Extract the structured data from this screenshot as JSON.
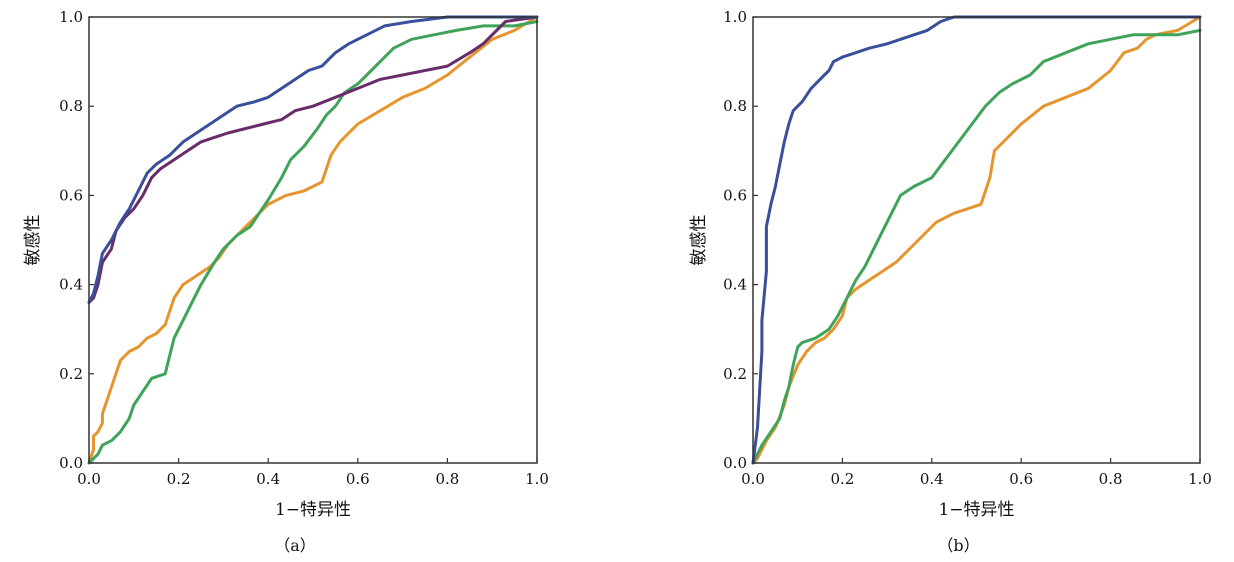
{
  "chart_data": [
    {
      "type": "line",
      "caption": "（a）",
      "xlabel": "1−特异性",
      "ylabel": "敏感性",
      "xlim": [
        0,
        1
      ],
      "ylim": [
        0,
        1
      ],
      "xticks": [
        "0.0",
        "0.2",
        "0.4",
        "0.6",
        "0.8",
        "1.0"
      ],
      "yticks": [
        "0.0",
        "0.2",
        "0.4",
        "0.6",
        "0.8",
        "1.0"
      ],
      "grid": false,
      "series": [
        {
          "color": "#e6952e",
          "points": [
            [
              0,
              0
            ],
            [
              0.01,
              0.03
            ],
            [
              0.01,
              0.06
            ],
            [
              0.02,
              0.07
            ],
            [
              0.03,
              0.09
            ],
            [
              0.03,
              0.11
            ],
            [
              0.04,
              0.14
            ],
            [
              0.05,
              0.17
            ],
            [
              0.06,
              0.2
            ],
            [
              0.07,
              0.23
            ],
            [
              0.09,
              0.25
            ],
            [
              0.11,
              0.26
            ],
            [
              0.13,
              0.28
            ],
            [
              0.15,
              0.29
            ],
            [
              0.17,
              0.31
            ],
            [
              0.19,
              0.37
            ],
            [
              0.21,
              0.4
            ],
            [
              0.24,
              0.42
            ],
            [
              0.27,
              0.44
            ],
            [
              0.29,
              0.46
            ],
            [
              0.31,
              0.49
            ],
            [
              0.34,
              0.52
            ],
            [
              0.37,
              0.55
            ],
            [
              0.4,
              0.58
            ],
            [
              0.44,
              0.6
            ],
            [
              0.48,
              0.61
            ],
            [
              0.52,
              0.63
            ],
            [
              0.54,
              0.69
            ],
            [
              0.56,
              0.72
            ],
            [
              0.6,
              0.76
            ],
            [
              0.65,
              0.79
            ],
            [
              0.7,
              0.82
            ],
            [
              0.75,
              0.84
            ],
            [
              0.8,
              0.87
            ],
            [
              0.85,
              0.91
            ],
            [
              0.9,
              0.95
            ],
            [
              0.95,
              0.97
            ],
            [
              1.0,
              1.0
            ]
          ]
        },
        {
          "color": "#3fa35a",
          "points": [
            [
              0,
              0
            ],
            [
              0.02,
              0.02
            ],
            [
              0.03,
              0.04
            ],
            [
              0.05,
              0.05
            ],
            [
              0.07,
              0.07
            ],
            [
              0.09,
              0.1
            ],
            [
              0.1,
              0.13
            ],
            [
              0.12,
              0.16
            ],
            [
              0.14,
              0.19
            ],
            [
              0.17,
              0.2
            ],
            [
              0.18,
              0.24
            ],
            [
              0.19,
              0.28
            ],
            [
              0.21,
              0.32
            ],
            [
              0.23,
              0.36
            ],
            [
              0.25,
              0.4
            ],
            [
              0.28,
              0.45
            ],
            [
              0.3,
              0.48
            ],
            [
              0.33,
              0.51
            ],
            [
              0.36,
              0.53
            ],
            [
              0.38,
              0.56
            ],
            [
              0.4,
              0.59
            ],
            [
              0.43,
              0.64
            ],
            [
              0.45,
              0.68
            ],
            [
              0.48,
              0.71
            ],
            [
              0.51,
              0.75
            ],
            [
              0.53,
              0.78
            ],
            [
              0.55,
              0.8
            ],
            [
              0.57,
              0.83
            ],
            [
              0.6,
              0.85
            ],
            [
              0.62,
              0.87
            ],
            [
              0.65,
              0.9
            ],
            [
              0.68,
              0.93
            ],
            [
              0.72,
              0.95
            ],
            [
              0.77,
              0.96
            ],
            [
              0.82,
              0.97
            ],
            [
              0.88,
              0.98
            ],
            [
              0.95,
              0.98
            ],
            [
              1.0,
              0.99
            ]
          ]
        },
        {
          "color": "#6a2b6b",
          "points": [
            [
              0,
              0.36
            ],
            [
              0.01,
              0.37
            ],
            [
              0.02,
              0.4
            ],
            [
              0.03,
              0.45
            ],
            [
              0.05,
              0.48
            ],
            [
              0.06,
              0.52
            ],
            [
              0.08,
              0.55
            ],
            [
              0.1,
              0.57
            ],
            [
              0.12,
              0.6
            ],
            [
              0.14,
              0.64
            ],
            [
              0.16,
              0.66
            ],
            [
              0.19,
              0.68
            ],
            [
              0.22,
              0.7
            ],
            [
              0.25,
              0.72
            ],
            [
              0.28,
              0.73
            ],
            [
              0.31,
              0.74
            ],
            [
              0.35,
              0.75
            ],
            [
              0.39,
              0.76
            ],
            [
              0.43,
              0.77
            ],
            [
              0.46,
              0.79
            ],
            [
              0.5,
              0.8
            ],
            [
              0.55,
              0.82
            ],
            [
              0.6,
              0.84
            ],
            [
              0.65,
              0.86
            ],
            [
              0.7,
              0.87
            ],
            [
              0.75,
              0.88
            ],
            [
              0.8,
              0.89
            ],
            [
              0.85,
              0.92
            ],
            [
              0.88,
              0.94
            ],
            [
              0.9,
              0.96
            ],
            [
              0.93,
              0.99
            ],
            [
              1.0,
              1.0
            ]
          ]
        },
        {
          "color": "#3a4f9c",
          "points": [
            [
              0,
              0.36
            ],
            [
              0.01,
              0.38
            ],
            [
              0.02,
              0.42
            ],
            [
              0.03,
              0.47
            ],
            [
              0.05,
              0.5
            ],
            [
              0.07,
              0.54
            ],
            [
              0.09,
              0.57
            ],
            [
              0.11,
              0.61
            ],
            [
              0.13,
              0.65
            ],
            [
              0.15,
              0.67
            ],
            [
              0.18,
              0.69
            ],
            [
              0.21,
              0.72
            ],
            [
              0.24,
              0.74
            ],
            [
              0.27,
              0.76
            ],
            [
              0.3,
              0.78
            ],
            [
              0.33,
              0.8
            ],
            [
              0.37,
              0.81
            ],
            [
              0.4,
              0.82
            ],
            [
              0.43,
              0.84
            ],
            [
              0.46,
              0.86
            ],
            [
              0.49,
              0.88
            ],
            [
              0.52,
              0.89
            ],
            [
              0.55,
              0.92
            ],
            [
              0.58,
              0.94
            ],
            [
              0.62,
              0.96
            ],
            [
              0.66,
              0.98
            ],
            [
              0.72,
              0.99
            ],
            [
              0.8,
              1.0
            ],
            [
              1.0,
              1.0
            ]
          ]
        }
      ]
    },
    {
      "type": "line",
      "caption": "（b）",
      "xlabel": "1−特异性",
      "ylabel": "敏感性",
      "xlim": [
        0,
        1
      ],
      "ylim": [
        0,
        1
      ],
      "xticks": [
        "0.0",
        "0.2",
        "0.4",
        "0.6",
        "0.8",
        "1.0"
      ],
      "yticks": [
        "0.0",
        "0.2",
        "0.4",
        "0.6",
        "0.8",
        "1.0"
      ],
      "grid": false,
      "series": [
        {
          "color": "#e6952e",
          "points": [
            [
              0,
              0
            ],
            [
              0.01,
              0.01
            ],
            [
              0.02,
              0.03
            ],
            [
              0.03,
              0.05
            ],
            [
              0.05,
              0.08
            ],
            [
              0.07,
              0.13
            ],
            [
              0.08,
              0.17
            ],
            [
              0.1,
              0.22
            ],
            [
              0.12,
              0.25
            ],
            [
              0.14,
              0.27
            ],
            [
              0.16,
              0.28
            ],
            [
              0.18,
              0.3
            ],
            [
              0.2,
              0.33
            ],
            [
              0.21,
              0.37
            ],
            [
              0.23,
              0.39
            ],
            [
              0.26,
              0.41
            ],
            [
              0.29,
              0.43
            ],
            [
              0.32,
              0.45
            ],
            [
              0.35,
              0.48
            ],
            [
              0.38,
              0.51
            ],
            [
              0.41,
              0.54
            ],
            [
              0.45,
              0.56
            ],
            [
              0.48,
              0.57
            ],
            [
              0.51,
              0.58
            ],
            [
              0.53,
              0.64
            ],
            [
              0.54,
              0.7
            ],
            [
              0.57,
              0.73
            ],
            [
              0.6,
              0.76
            ],
            [
              0.65,
              0.8
            ],
            [
              0.7,
              0.82
            ],
            [
              0.75,
              0.84
            ],
            [
              0.8,
              0.88
            ],
            [
              0.83,
              0.92
            ],
            [
              0.86,
              0.93
            ],
            [
              0.88,
              0.95
            ],
            [
              0.9,
              0.96
            ],
            [
              0.95,
              0.97
            ],
            [
              1.0,
              1.0
            ]
          ]
        },
        {
          "color": "#3fa35a",
          "points": [
            [
              0,
              0
            ],
            [
              0.01,
              0.02
            ],
            [
              0.02,
              0.04
            ],
            [
              0.04,
              0.07
            ],
            [
              0.06,
              0.1
            ],
            [
              0.07,
              0.14
            ],
            [
              0.08,
              0.17
            ],
            [
              0.09,
              0.22
            ],
            [
              0.1,
              0.26
            ],
            [
              0.11,
              0.27
            ],
            [
              0.14,
              0.28
            ],
            [
              0.17,
              0.3
            ],
            [
              0.19,
              0.33
            ],
            [
              0.21,
              0.37
            ],
            [
              0.23,
              0.41
            ],
            [
              0.25,
              0.44
            ],
            [
              0.27,
              0.48
            ],
            [
              0.29,
              0.52
            ],
            [
              0.31,
              0.56
            ],
            [
              0.33,
              0.6
            ],
            [
              0.36,
              0.62
            ],
            [
              0.4,
              0.64
            ],
            [
              0.43,
              0.68
            ],
            [
              0.46,
              0.72
            ],
            [
              0.49,
              0.76
            ],
            [
              0.52,
              0.8
            ],
            [
              0.55,
              0.83
            ],
            [
              0.58,
              0.85
            ],
            [
              0.62,
              0.87
            ],
            [
              0.65,
              0.9
            ],
            [
              0.7,
              0.92
            ],
            [
              0.75,
              0.94
            ],
            [
              0.8,
              0.95
            ],
            [
              0.85,
              0.96
            ],
            [
              0.9,
              0.96
            ],
            [
              0.95,
              0.96
            ],
            [
              1.0,
              0.97
            ]
          ]
        },
        {
          "color": "#3a4f9c",
          "points": [
            [
              0,
              0
            ],
            [
              0.01,
              0.08
            ],
            [
              0.02,
              0.25
            ],
            [
              0.02,
              0.32
            ],
            [
              0.03,
              0.43
            ],
            [
              0.03,
              0.53
            ],
            [
              0.04,
              0.58
            ],
            [
              0.05,
              0.62
            ],
            [
              0.06,
              0.67
            ],
            [
              0.07,
              0.72
            ],
            [
              0.08,
              0.76
            ],
            [
              0.09,
              0.79
            ],
            [
              0.11,
              0.81
            ],
            [
              0.13,
              0.84
            ],
            [
              0.15,
              0.86
            ],
            [
              0.17,
              0.88
            ],
            [
              0.18,
              0.9
            ],
            [
              0.2,
              0.91
            ],
            [
              0.23,
              0.92
            ],
            [
              0.26,
              0.93
            ],
            [
              0.3,
              0.94
            ],
            [
              0.33,
              0.95
            ],
            [
              0.36,
              0.96
            ],
            [
              0.39,
              0.97
            ],
            [
              0.42,
              0.99
            ],
            [
              0.45,
              1.0
            ],
            [
              1.0,
              1.0
            ]
          ]
        }
      ]
    }
  ]
}
